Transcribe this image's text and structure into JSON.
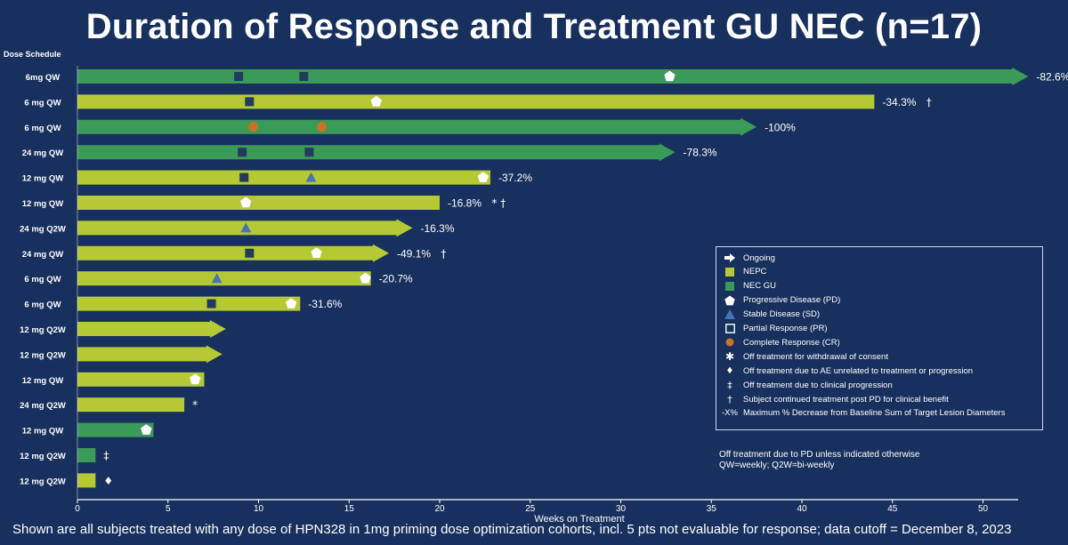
{
  "title": "Duration of Response and Treatment GU NEC (n=17)",
  "footer": "Shown are all subjects treated with any dose of HPN328 in 1mg priming dose optimization cohorts, incl. 5 pts not evaluable for response;  data cutoff = December 8, 2023",
  "colors": {
    "background": "#17305e",
    "NEPC": "#b5c935",
    "NEC GU": "#3a9a57",
    "PD": "#ffffff",
    "SD": "#4a72b6",
    "PR": "#24395e",
    "CR": "#c8732a"
  },
  "legend": {
    "items": [
      {
        "icon": "arrow-right-icon",
        "label": "Ongoing"
      },
      {
        "icon": "nepc-swatch-icon",
        "label": "NEPC"
      },
      {
        "icon": "nec-gu-swatch-icon",
        "label": "NEC GU"
      },
      {
        "icon": "pentagon-icon",
        "label": "Progressive Disease (PD)"
      },
      {
        "icon": "triangle-icon",
        "label": "Stable Disease (SD)"
      },
      {
        "icon": "square-icon",
        "label": "Partial Response (PR)"
      },
      {
        "icon": "circle-icon",
        "label": "Complete Response (CR)"
      },
      {
        "icon": "asterisk-icon",
        "label": "Off treatment for withdrawal of consent"
      },
      {
        "icon": "diamond-icon",
        "label": "Off treatment due to AE unrelated to treatment or progression"
      },
      {
        "icon": "double-dagger-icon",
        "label": "Off treatment due to clinical progression"
      },
      {
        "icon": "dagger-icon",
        "label": "Subject continued treatment post PD for clinical benefit"
      },
      {
        "icon": "x-percent-text",
        "symbol_text": "-X%",
        "label": "Maximum % Decrease from Baseline Sum of Target Lesion Diameters"
      }
    ],
    "note_line1": "Off treatment due to PD unless indicated otherwise",
    "note_line2": "QW=weekly; Q2W=bi-weekly"
  },
  "chart_data": {
    "type": "bar",
    "orientation": "horizontal",
    "title": "Duration of Response and Treatment GU NEC (n=17)",
    "xlabel": "Weeks on Treatment",
    "ylabel": "Dose Schedule",
    "xlim": [
      0,
      53
    ],
    "xticks": [
      0,
      5,
      10,
      15,
      20,
      25,
      30,
      35,
      40,
      45,
      50
    ],
    "rows": [
      {
        "dose": "6mg QW",
        "weeks": 52.5,
        "type": "NEC GU",
        "ongoing": true,
        "label": "-82.6%",
        "symbol": "†",
        "markers": [
          {
            "t": "PR",
            "x": 8.9
          },
          {
            "t": "PR",
            "x": 12.5
          },
          {
            "t": "PD",
            "x": 32.7
          }
        ]
      },
      {
        "dose": "6 mg QW",
        "weeks": 44.0,
        "type": "NEPC",
        "ongoing": false,
        "label": "-34.3%",
        "symbol": "†",
        "markers": [
          {
            "t": "PR",
            "x": 9.5
          },
          {
            "t": "PD",
            "x": 16.5
          }
        ]
      },
      {
        "dose": "6 mg QW",
        "weeks": 37.5,
        "type": "NEC GU",
        "ongoing": true,
        "label": "-100%",
        "symbol": "",
        "markers": [
          {
            "t": "CR",
            "x": 9.7
          },
          {
            "t": "CR",
            "x": 13.5
          }
        ]
      },
      {
        "dose": "24 mg QW",
        "weeks": 33.0,
        "type": "NEC GU",
        "ongoing": true,
        "label": "-78.3%",
        "symbol": "",
        "markers": [
          {
            "t": "PR",
            "x": 9.1
          },
          {
            "t": "PR",
            "x": 12.8
          }
        ]
      },
      {
        "dose": "12 mg QW",
        "weeks": 22.8,
        "type": "NEPC",
        "ongoing": false,
        "label": "-37.2%",
        "symbol": "",
        "markers": [
          {
            "t": "PR",
            "x": 9.2
          },
          {
            "t": "SD",
            "x": 12.9
          },
          {
            "t": "PD",
            "x": 22.4
          }
        ]
      },
      {
        "dose": "12 mg QW",
        "weeks": 20.0,
        "type": "NEPC",
        "ongoing": false,
        "label": "-16.8%",
        "symbol": "* †",
        "markers": [
          {
            "t": "PD",
            "x": 9.3
          }
        ]
      },
      {
        "dose": "24 mg Q2W",
        "weeks": 18.5,
        "type": "NEPC",
        "ongoing": true,
        "label": "-16.3%",
        "symbol": "",
        "markers": [
          {
            "t": "SD",
            "x": 9.3
          }
        ]
      },
      {
        "dose": "24 mg QW",
        "weeks": 17.2,
        "type": "NEPC",
        "ongoing": true,
        "label": "-49.1%",
        "symbol": "†",
        "markers": [
          {
            "t": "PR",
            "x": 9.5
          },
          {
            "t": "PD",
            "x": 13.2
          }
        ]
      },
      {
        "dose": "6 mg QW",
        "weeks": 16.2,
        "type": "NEPC",
        "ongoing": false,
        "label": "-20.7%",
        "symbol": "",
        "markers": [
          {
            "t": "SD",
            "x": 7.7
          },
          {
            "t": "PD",
            "x": 15.9
          }
        ]
      },
      {
        "dose": "6 mg QW",
        "weeks": 12.3,
        "type": "NEPC",
        "ongoing": false,
        "label": "-31.6%",
        "symbol": "",
        "markers": [
          {
            "t": "PR",
            "x": 7.4
          },
          {
            "t": "PD",
            "x": 11.8
          }
        ]
      },
      {
        "dose": "12 mg Q2W",
        "weeks": 8.2,
        "type": "NEPC",
        "ongoing": true,
        "label": "",
        "symbol": "",
        "markers": []
      },
      {
        "dose": "12 mg Q2W",
        "weeks": 8.0,
        "type": "NEPC",
        "ongoing": true,
        "label": "",
        "symbol": "",
        "markers": []
      },
      {
        "dose": "12 mg QW",
        "weeks": 7.0,
        "type": "NEPC",
        "ongoing": false,
        "label": "",
        "symbol": "",
        "markers": [
          {
            "t": "PD",
            "x": 6.5
          }
        ]
      },
      {
        "dose": "24 mg Q2W",
        "weeks": 5.9,
        "type": "NEPC",
        "ongoing": false,
        "label": "",
        "symbol": "*",
        "markers": []
      },
      {
        "dose": "12 mg QW",
        "weeks": 4.2,
        "type": "NEC GU",
        "ongoing": false,
        "label": "",
        "symbol": "",
        "markers": [
          {
            "t": "PD",
            "x": 3.8
          }
        ]
      },
      {
        "dose": "12 mg Q2W",
        "weeks": 1.0,
        "type": "NEC GU",
        "ongoing": false,
        "label": "",
        "symbol": "‡",
        "markers": []
      },
      {
        "dose": "12 mg Q2W",
        "weeks": 1.0,
        "type": "NEPC",
        "ongoing": false,
        "label": "",
        "symbol": "♦",
        "markers": []
      }
    ]
  }
}
